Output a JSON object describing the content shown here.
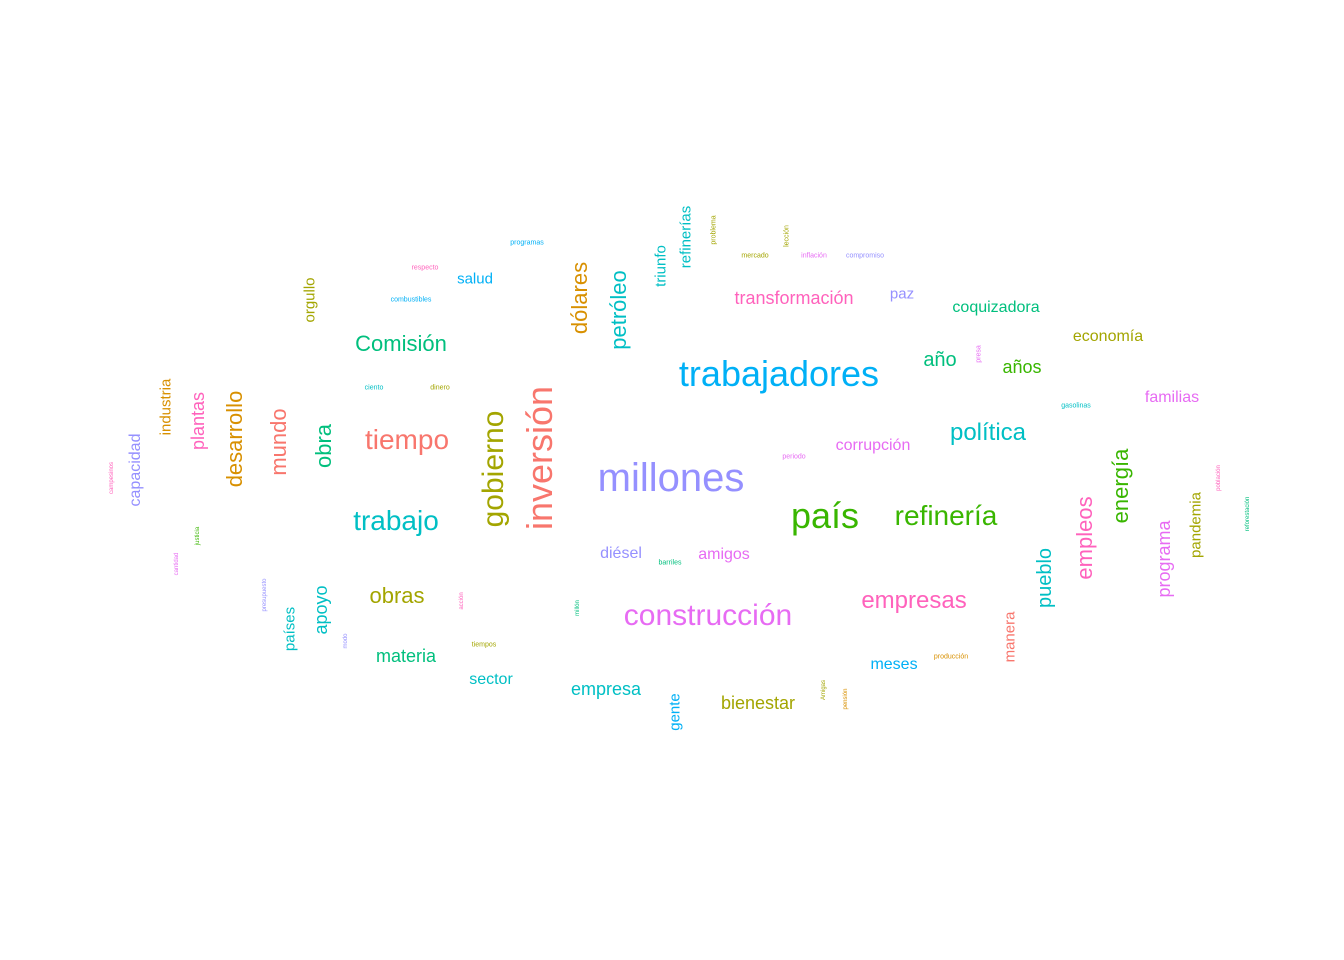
{
  "palette": {
    "red": "#f8766d",
    "orange": "#d89000",
    "olive": "#a3a500",
    "green": "#39b600",
    "teal": "#00bf7d",
    "cyan": "#00bfc4",
    "blue": "#00b0f6",
    "purple": "#9590ff",
    "magenta": "#e76bf3",
    "pink": "#ff62bc"
  },
  "words": [
    {
      "text": "millones",
      "color": "purple",
      "vertical": false
    },
    {
      "text": "trabajadores",
      "color": "blue",
      "vertical": false
    },
    {
      "text": "inversión",
      "color": "red",
      "vertical": true
    },
    {
      "text": "país",
      "color": "green",
      "vertical": false
    },
    {
      "text": "gobierno",
      "color": "olive",
      "vertical": true
    },
    {
      "text": "construcción",
      "color": "magenta",
      "vertical": false
    },
    {
      "text": "refinería",
      "color": "green",
      "vertical": false
    },
    {
      "text": "trabajo",
      "color": "cyan",
      "vertical": false
    },
    {
      "text": "tiempo",
      "color": "red",
      "vertical": false
    },
    {
      "text": "empresas",
      "color": "pink",
      "vertical": false
    },
    {
      "text": "política",
      "color": "cyan",
      "vertical": false
    },
    {
      "text": "desarrollo",
      "color": "orange",
      "vertical": true
    },
    {
      "text": "Comisión",
      "color": "teal",
      "vertical": false
    },
    {
      "text": "mundo",
      "color": "red",
      "vertical": true
    },
    {
      "text": "dólares",
      "color": "orange",
      "vertical": true
    },
    {
      "text": "petróleo",
      "color": "cyan",
      "vertical": true
    },
    {
      "text": "empleos",
      "color": "pink",
      "vertical": true
    },
    {
      "text": "energía",
      "color": "green",
      "vertical": true
    },
    {
      "text": "obras",
      "color": "olive",
      "vertical": false
    },
    {
      "text": "pueblo",
      "color": "cyan",
      "vertical": true
    },
    {
      "text": "transformación",
      "color": "pink",
      "vertical": false
    },
    {
      "text": "obra",
      "color": "teal",
      "vertical": true
    },
    {
      "text": "empresa",
      "color": "cyan",
      "vertical": false
    },
    {
      "text": "bienestar",
      "color": "olive",
      "vertical": false
    },
    {
      "text": "año",
      "color": "teal",
      "vertical": false
    },
    {
      "text": "años",
      "color": "green",
      "vertical": false
    },
    {
      "text": "materia",
      "color": "teal",
      "vertical": false
    },
    {
      "text": "programa",
      "color": "magenta",
      "vertical": true
    },
    {
      "text": "plantas",
      "color": "pink",
      "vertical": true
    },
    {
      "text": "apoyo",
      "color": "cyan",
      "vertical": true
    },
    {
      "text": "capacidad",
      "color": "purple",
      "vertical": true
    },
    {
      "text": "corrupción",
      "color": "magenta",
      "vertical": false
    },
    {
      "text": "amigos",
      "color": "magenta",
      "vertical": false
    },
    {
      "text": "diésel",
      "color": "purple",
      "vertical": false
    },
    {
      "text": "coquizadora",
      "color": "teal",
      "vertical": false
    },
    {
      "text": "economía",
      "color": "olive",
      "vertical": false
    },
    {
      "text": "familias",
      "color": "magenta",
      "vertical": false
    },
    {
      "text": "industria",
      "color": "orange",
      "vertical": true
    },
    {
      "text": "pandemia",
      "color": "olive",
      "vertical": true
    },
    {
      "text": "países",
      "color": "cyan",
      "vertical": true
    },
    {
      "text": "sector",
      "color": "cyan",
      "vertical": false
    },
    {
      "text": "meses",
      "color": "blue",
      "vertical": false
    },
    {
      "text": "manera",
      "color": "red",
      "vertical": true
    },
    {
      "text": "gente",
      "color": "blue",
      "vertical": true
    },
    {
      "text": "triunfo",
      "color": "cyan",
      "vertical": true
    },
    {
      "text": "refinerías",
      "color": "cyan",
      "vertical": true
    },
    {
      "text": "orgullo",
      "color": "olive",
      "vertical": true
    },
    {
      "text": "salud",
      "color": "blue",
      "vertical": false
    },
    {
      "text": "paz",
      "color": "purple",
      "vertical": false
    },
    {
      "text": "programas",
      "color": "blue",
      "vertical": false
    },
    {
      "text": "respecto",
      "color": "pink",
      "vertical": false
    },
    {
      "text": "combustibles",
      "color": "blue",
      "vertical": false
    },
    {
      "text": "ciento",
      "color": "cyan",
      "vertical": false
    },
    {
      "text": "dinero",
      "color": "olive",
      "vertical": false
    },
    {
      "text": "gasolinas",
      "color": "cyan",
      "vertical": false
    },
    {
      "text": "periodo",
      "color": "magenta",
      "vertical": false
    },
    {
      "text": "barriles",
      "color": "teal",
      "vertical": false
    },
    {
      "text": "tiempos",
      "color": "olive",
      "vertical": false
    },
    {
      "text": "producción",
      "color": "orange",
      "vertical": false
    },
    {
      "text": "mercado",
      "color": "olive",
      "vertical": false
    },
    {
      "text": "inflación",
      "color": "magenta",
      "vertical": false
    },
    {
      "text": "compromiso",
      "color": "purple",
      "vertical": false
    },
    {
      "text": "problema",
      "color": "olive",
      "vertical": true
    },
    {
      "text": "lección",
      "color": "olive",
      "vertical": true
    },
    {
      "text": "presa",
      "color": "magenta",
      "vertical": true
    },
    {
      "text": "campesinos",
      "color": "pink",
      "vertical": true
    },
    {
      "text": "cantidad",
      "color": "magenta",
      "vertical": true
    },
    {
      "text": "justicia",
      "color": "green",
      "vertical": true
    },
    {
      "text": "presupuesto",
      "color": "purple",
      "vertical": true
    },
    {
      "text": "modo",
      "color": "purple",
      "vertical": true
    },
    {
      "text": "acción",
      "color": "pink",
      "vertical": true
    },
    {
      "text": "millón",
      "color": "teal",
      "vertical": true
    },
    {
      "text": "Amigas",
      "color": "olive",
      "vertical": true
    },
    {
      "text": "pensión",
      "color": "orange",
      "vertical": true
    },
    {
      "text": "población",
      "color": "pink",
      "vertical": true
    },
    {
      "text": "reforestación",
      "color": "teal",
      "vertical": true
    }
  ]
}
